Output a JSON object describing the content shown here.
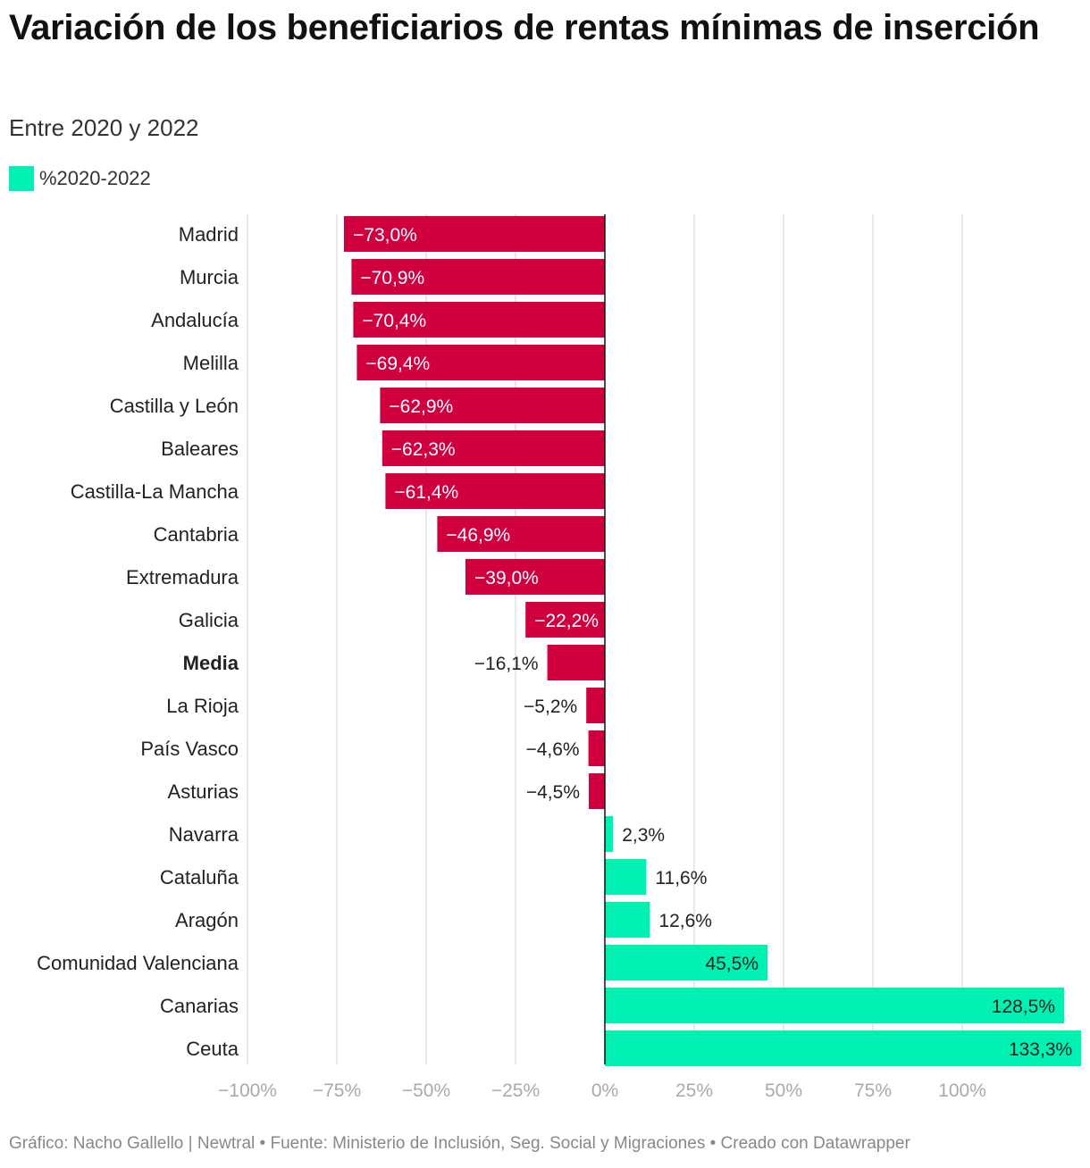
{
  "title": "Variación de los beneficiarios de rentas mínimas de inserción",
  "subtitle": "Entre 2020 y 2022",
  "legend": {
    "label": "%2020-2022"
  },
  "footer": "Gráfico: Nacho Gallello | Newtral • Fuente: Ministerio de Inclusión, Seg. Social y Migraciones • Creado con Datawrapper",
  "colors": {
    "negative": "#cf003d",
    "positive": "#00f2b2",
    "grid": "#e0e0e0",
    "axis": "#111111",
    "tick": "#aaaaaa"
  },
  "chart_data": {
    "type": "bar",
    "orientation": "horizontal",
    "categories": [
      "Madrid",
      "Murcia",
      "Andalucía",
      "Melilla",
      "Castilla y León",
      "Baleares",
      "Castilla-La Mancha",
      "Cantabria",
      "Extremadura",
      "Galicia",
      "Media",
      "La Rioja",
      "País Vasco",
      "Asturias",
      "Navarra",
      "Cataluña",
      "Aragón",
      "Comunidad Valenciana",
      "Canarias",
      "Ceuta"
    ],
    "series": [
      {
        "name": "%2020-2022",
        "values": [
          -73.0,
          -70.9,
          -70.4,
          -69.4,
          -62.9,
          -62.3,
          -61.4,
          -46.9,
          -39.0,
          -22.2,
          -16.1,
          -5.2,
          -4.6,
          -4.5,
          2.3,
          11.6,
          12.6,
          45.5,
          128.5,
          133.3
        ],
        "labels": [
          "−73,0%",
          "−70,9%",
          "−70,4%",
          "−69,4%",
          "−62,9%",
          "−62,3%",
          "−61,4%",
          "−46,9%",
          "−39,0%",
          "−22,2%",
          "−16,1%",
          "−5,2%",
          "−4,6%",
          "−4,5%",
          "2,3%",
          "11,6%",
          "12,6%",
          "45,5%",
          "128,5%",
          "133,3%"
        ]
      }
    ],
    "highlighted_category": "Media",
    "xlim": [
      -100,
      133.3
    ],
    "x_ticks": [
      -100,
      -75,
      -50,
      -25,
      0,
      25,
      50,
      75,
      100
    ],
    "x_tick_labels": [
      "−100%",
      "−75%",
      "−50%",
      "−25%",
      "0%",
      "25%",
      "50%",
      "75%",
      "100%"
    ],
    "grid": true,
    "xlabel": "",
    "ylabel": ""
  }
}
